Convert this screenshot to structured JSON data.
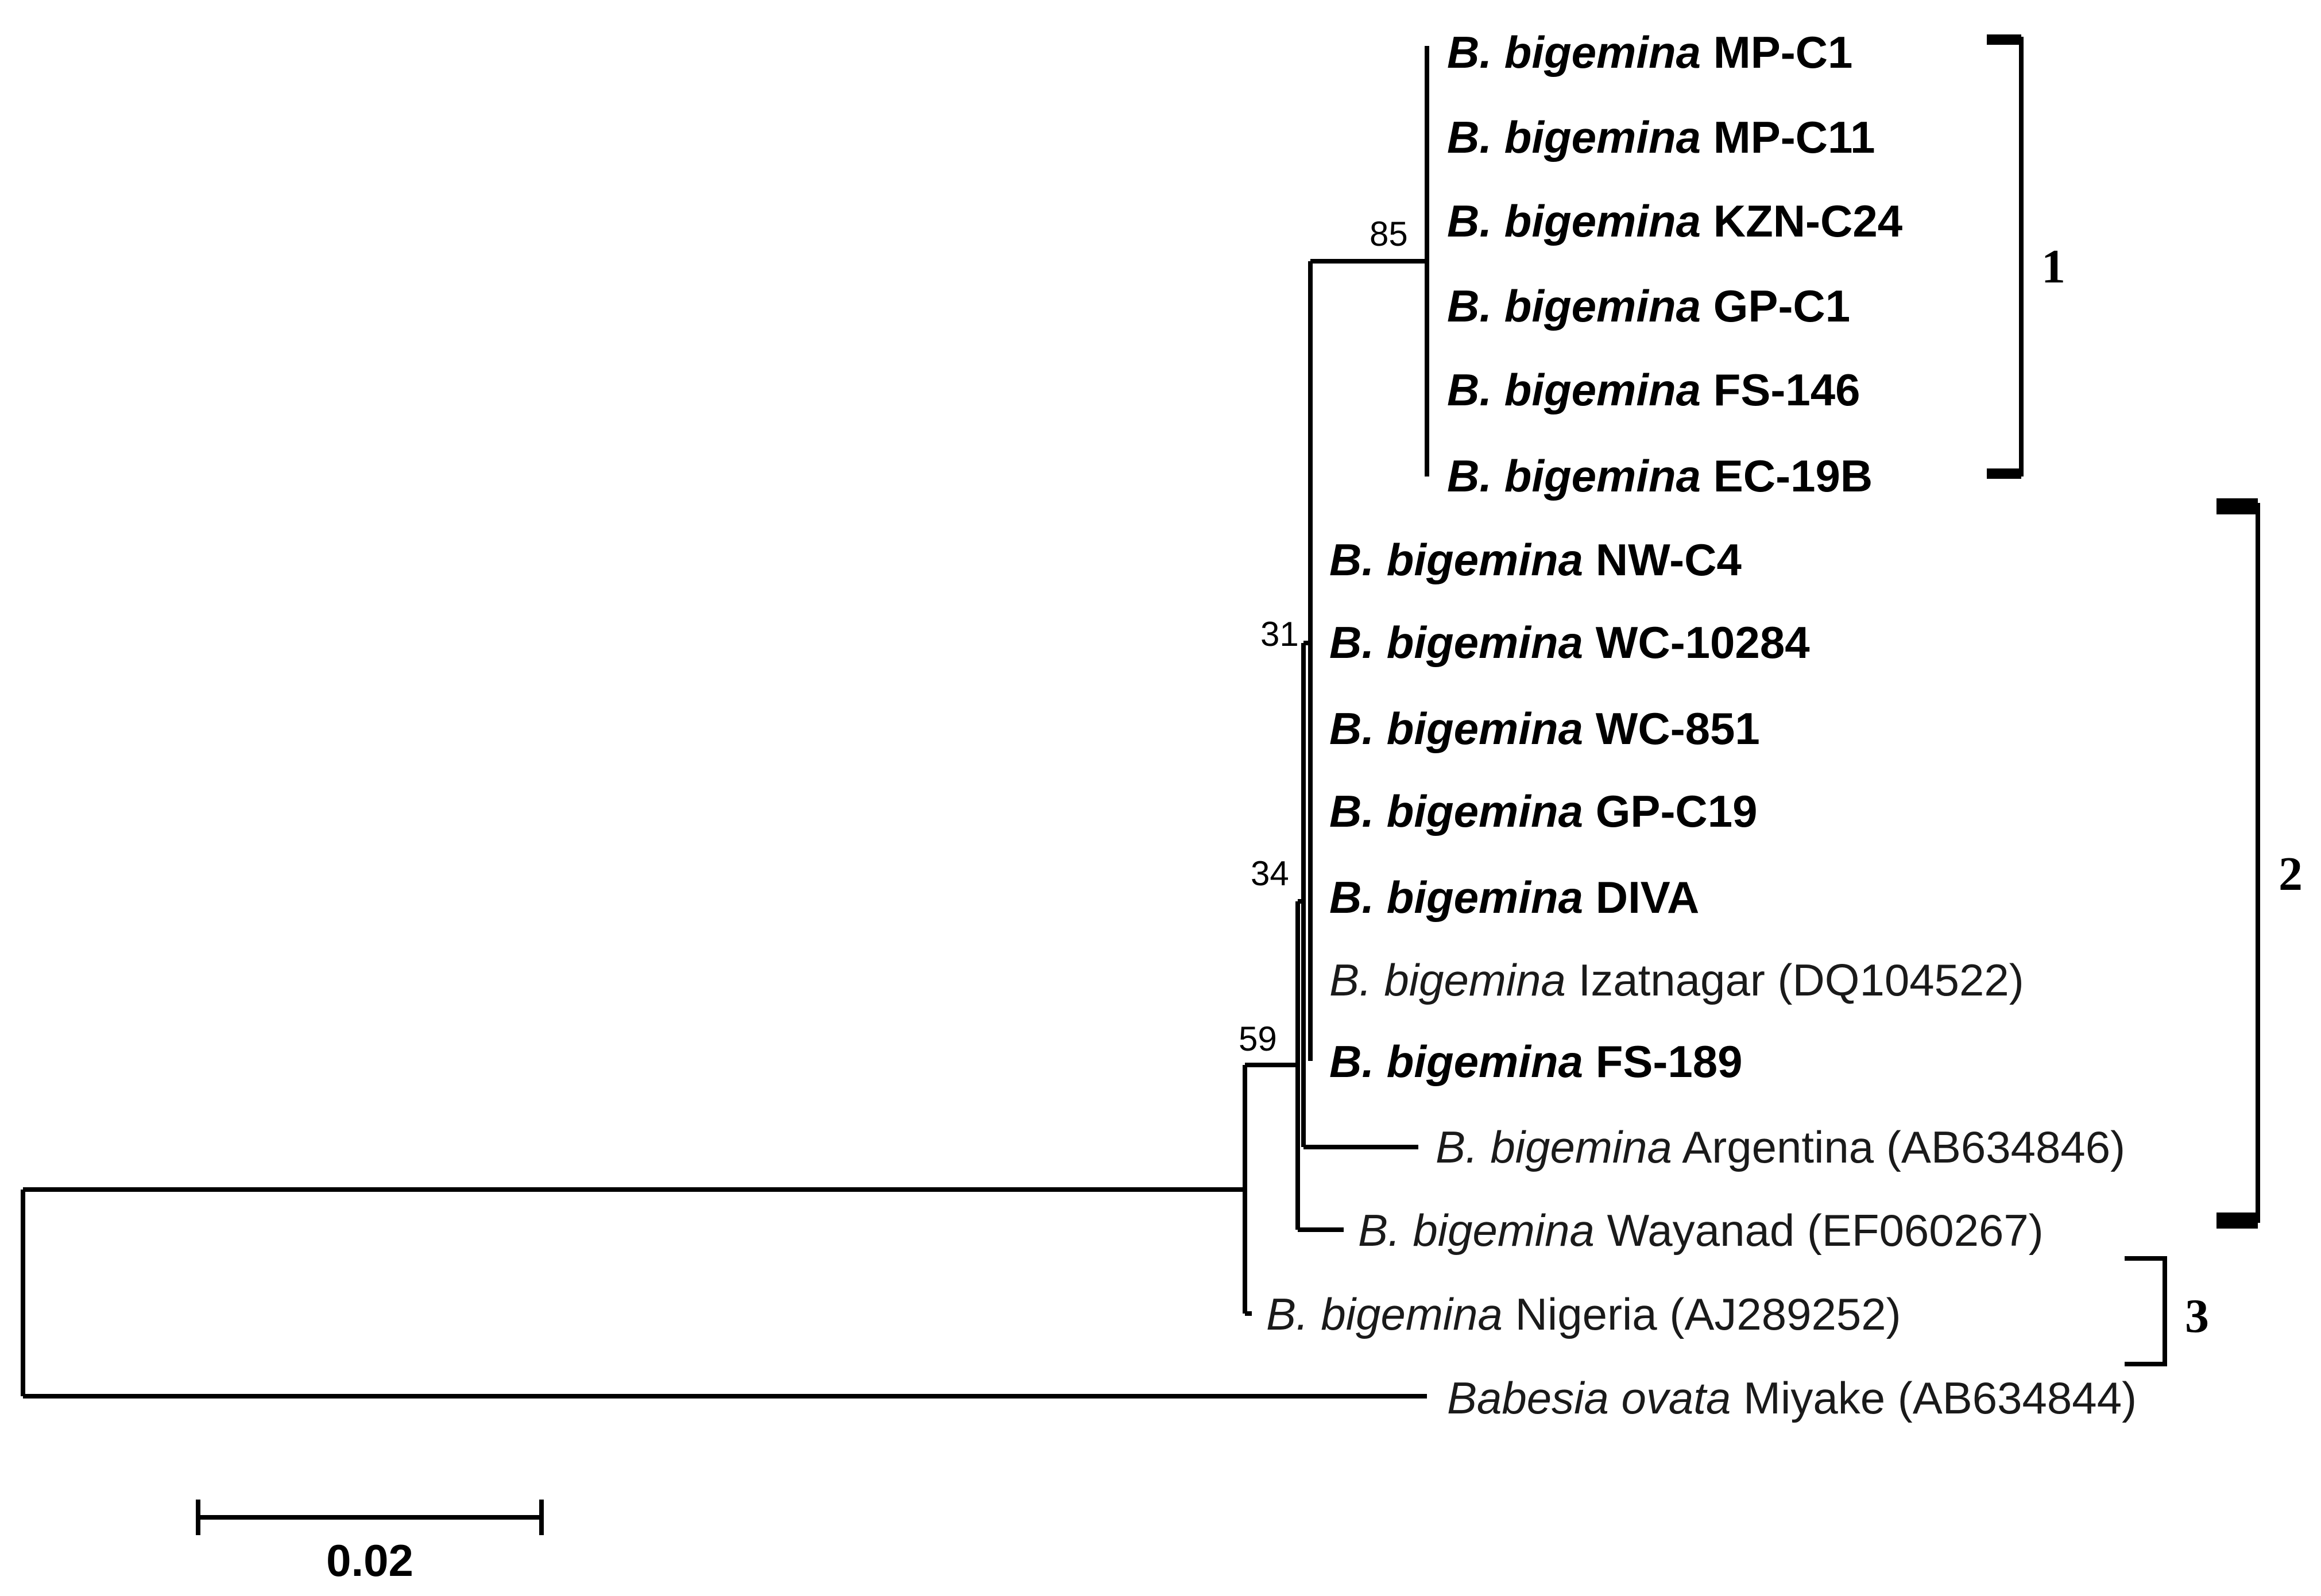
{
  "tree": {
    "taxa": [
      {
        "id": "mp-c1",
        "genus": "B. bigemina",
        "strain": "MP-C1",
        "bold": true
      },
      {
        "id": "mp-c11",
        "genus": "B. bigemina",
        "strain": "MP-C11",
        "bold": true
      },
      {
        "id": "kzn-c24",
        "genus": "B. bigemina",
        "strain": "KZN-C24",
        "bold": true
      },
      {
        "id": "gp-c1",
        "genus": "B. bigemina",
        "strain": "GP-C1",
        "bold": true
      },
      {
        "id": "fs-146",
        "genus": "B. bigemina",
        "strain": "FS-146",
        "bold": true
      },
      {
        "id": "ec-19b",
        "genus": "B. bigemina",
        "strain": "EC-19B",
        "bold": true
      },
      {
        "id": "nw-c4",
        "genus": "B. bigemina",
        "strain": "NW-C4",
        "bold": true
      },
      {
        "id": "wc-10284",
        "genus": "B. bigemina",
        "strain": "WC-10284",
        "bold": true
      },
      {
        "id": "wc-851",
        "genus": "B. bigemina",
        "strain": "WC-851",
        "bold": true
      },
      {
        "id": "gp-c19",
        "genus": "B. bigemina",
        "strain": "GP-C19",
        "bold": true
      },
      {
        "id": "diva",
        "genus": "B. bigemina",
        "strain": "DIVA",
        "bold": true
      },
      {
        "id": "izatnagar",
        "genus": "B. bigemina",
        "strain": "Izatnagar (DQ104522)",
        "bold": false
      },
      {
        "id": "fs-189",
        "genus": "B. bigemina",
        "strain": "FS-189",
        "bold": true
      },
      {
        "id": "argentina",
        "genus": "B. bigemina",
        "strain": "Argentina (AB634846)",
        "bold": false
      },
      {
        "id": "wayanad",
        "genus": "B. bigemina",
        "strain": "Wayanad (EF060267)",
        "bold": false
      },
      {
        "id": "nigeria",
        "genus": "B. bigemina",
        "strain": "Nigeria (AJ289252)",
        "bold": false
      },
      {
        "id": "miyake",
        "genus": "Babesia ovata",
        "strain": "Miyake (AB634844)",
        "bold": false
      }
    ],
    "bootstrap": {
      "clade1": "85",
      "clade2a": "31",
      "clade2b": "34",
      "clade2c": "59"
    },
    "clades": {
      "one": "1",
      "two": "2",
      "three": "3"
    },
    "scale_bar": "0.02"
  }
}
